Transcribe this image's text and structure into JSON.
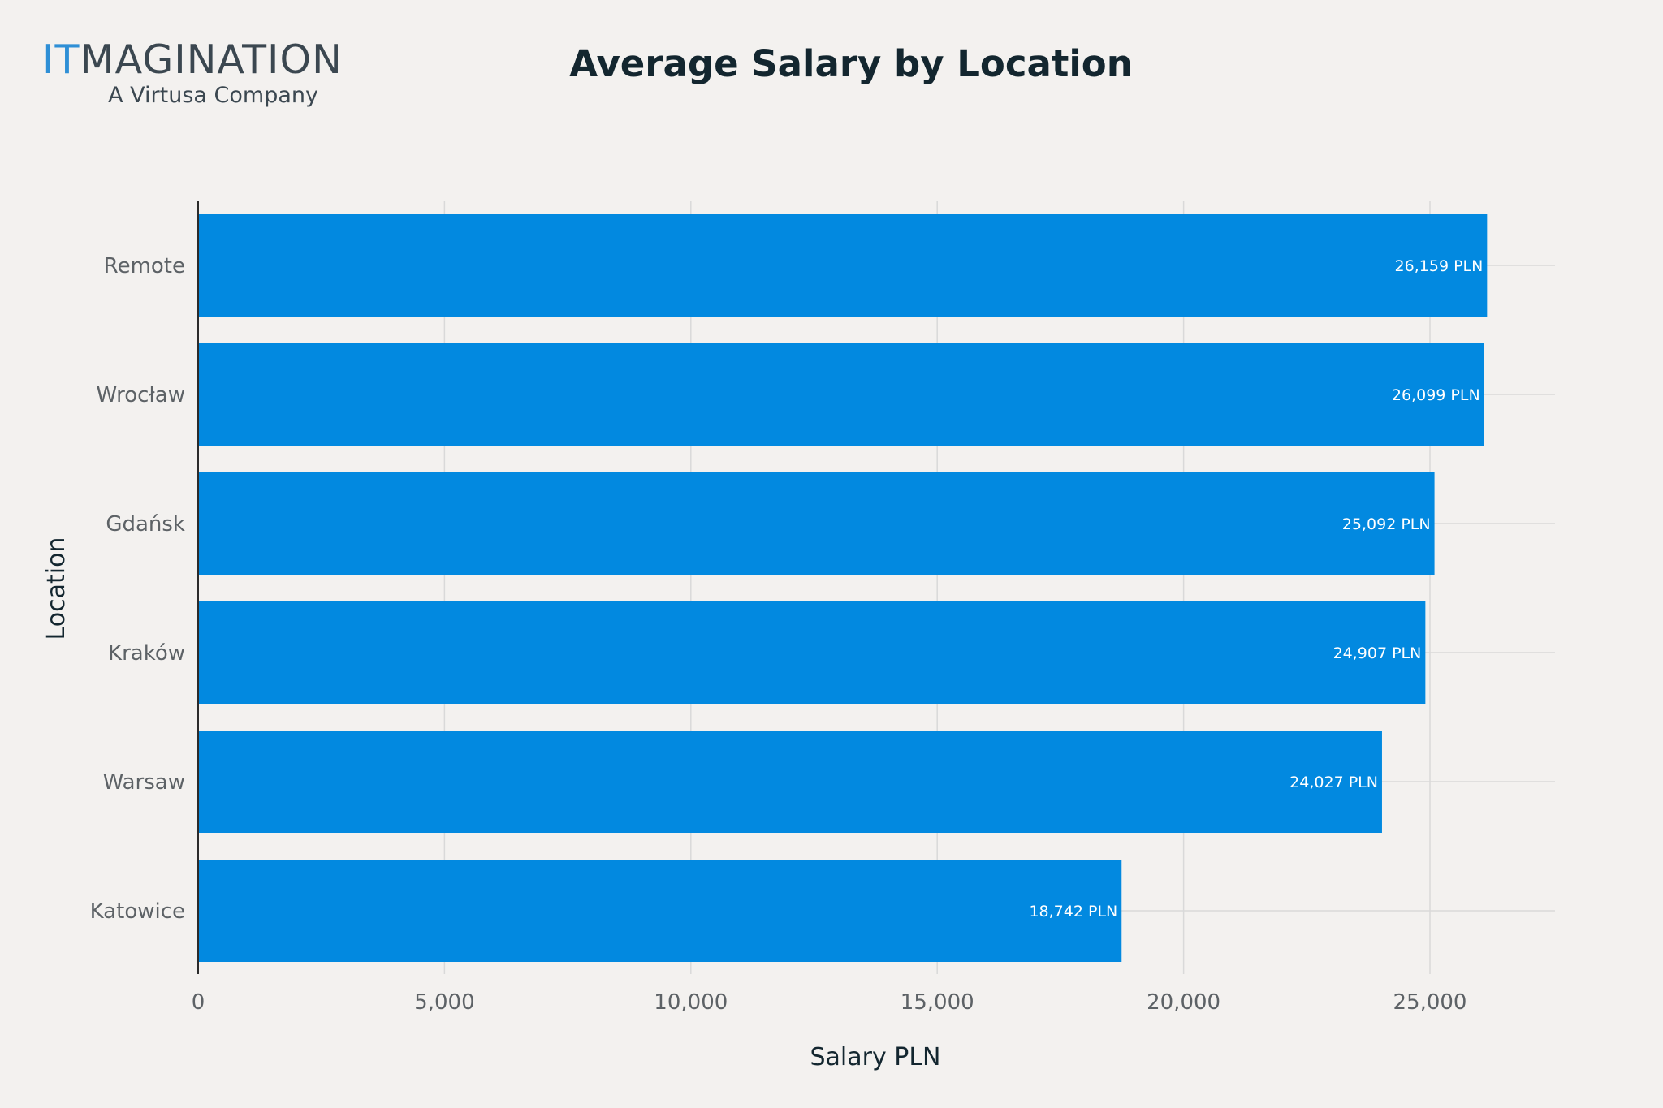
{
  "logo": {
    "part1": "IT",
    "part2": "MAGINATION",
    "tagline": "A Virtusa Company"
  },
  "colors": {
    "bar": "#0289e0",
    "background": "#f3f1ef",
    "grid": "#d9d9d9",
    "title": "#13262f",
    "logo_accent": "#2e8fd6"
  },
  "chart_data": {
    "type": "bar",
    "orientation": "horizontal",
    "title": "Average Salary by Location",
    "xlabel": "Salary PLN",
    "ylabel": "Location",
    "categories": [
      "Remote",
      "Wrocław",
      "Gdańsk",
      "Kraków",
      "Warsaw",
      "Katowice"
    ],
    "values": [
      26159,
      26099,
      25092,
      24907,
      24027,
      18742
    ],
    "data_labels": [
      "26,159 PLN",
      "26,099 PLN",
      "25,092 PLN",
      "24,907 PLN",
      "24,027 PLN",
      "18,742 PLN"
    ],
    "xticks": [
      0,
      5000,
      10000,
      15000,
      20000,
      25000
    ],
    "xtick_labels": [
      "0",
      "5,000",
      "10,000",
      "15,000",
      "20,000",
      "25,000"
    ],
    "xlim": [
      0,
      27500
    ],
    "grid": true,
    "legend": "none"
  }
}
